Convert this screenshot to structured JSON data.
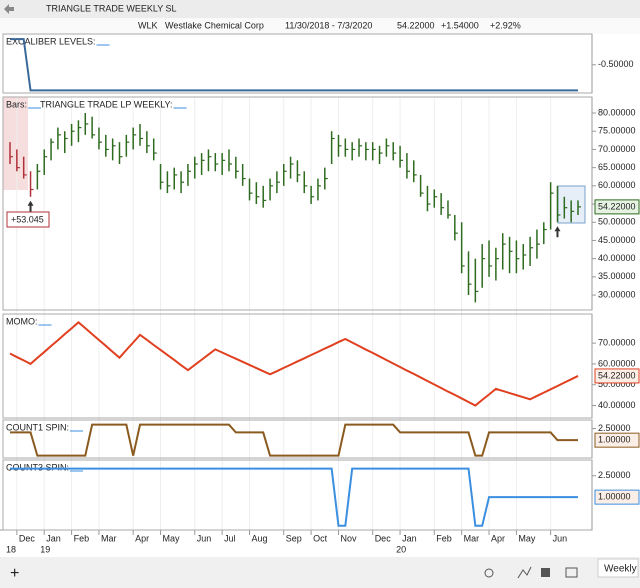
{
  "window": {
    "title": "TRIANGLE TRADE WEEKLY SL"
  },
  "header": {
    "symbol": "WLK",
    "name": "Westlake Chemical Corp",
    "range": "11/30/2018 - 7/3/2020",
    "last": "54.22000",
    "change": "+1.54000",
    "change_pct": "+2.92%"
  },
  "x_axis": {
    "categories": [
      null,
      "Dec",
      null,
      null,
      null,
      "Jan",
      null,
      null,
      null,
      "Feb",
      null,
      null,
      null,
      "Mar",
      null,
      null,
      null,
      null,
      "Apr",
      null,
      null,
      null,
      "May",
      null,
      null,
      null,
      null,
      "Jun",
      null,
      null,
      null,
      "Jul",
      null,
      null,
      null,
      "Aug",
      null,
      null,
      null,
      null,
      "Sep",
      null,
      null,
      null,
      "Oct",
      null,
      null,
      null,
      "Nov",
      null,
      null,
      null,
      null,
      "Dec",
      null,
      null,
      null,
      "Jan",
      null,
      null,
      null,
      null,
      "Feb",
      null,
      null,
      null,
      "Mar",
      null,
      null,
      null,
      "Apr",
      null,
      null,
      null,
      "May",
      null,
      null,
      null,
      null,
      "Jun",
      null,
      null,
      null,
      null
    ],
    "years": [
      "18",
      null,
      null,
      null,
      null,
      "19",
      null,
      null,
      null,
      null,
      null,
      null,
      null,
      null,
      null,
      null,
      null,
      null,
      null,
      null,
      null,
      null,
      null,
      null,
      null,
      null,
      null,
      null,
      null,
      null,
      null,
      null,
      null,
      null,
      null,
      null,
      null,
      null,
      null,
      null,
      null,
      null,
      null,
      null,
      null,
      null,
      null,
      null,
      null,
      null,
      null,
      null,
      null,
      null,
      null,
      null,
      null,
      "20",
      null,
      null,
      null,
      null,
      null,
      null,
      null,
      null,
      null,
      null,
      null,
      null,
      null,
      null,
      null,
      null,
      null,
      null,
      null,
      null,
      null,
      null,
      null,
      null,
      null,
      null
    ]
  },
  "chart_data": [
    {
      "type": "line",
      "label": "EXCALIBER LEVELS:",
      "color": "#3b6a9a",
      "values": [
        0,
        0,
        0,
        -1,
        -1,
        -1,
        -1,
        -1,
        -1,
        -1,
        -1,
        -1,
        -1,
        -1,
        -1,
        -1,
        -1,
        -1,
        -1,
        -1,
        -1,
        -1,
        -1,
        -1,
        -1,
        -1,
        -1,
        -1,
        -1,
        -1,
        -1,
        -1,
        -1,
        -1,
        -1,
        -1,
        -1,
        -1,
        -1,
        -1,
        -1,
        -1,
        -1,
        -1,
        -1,
        -1,
        -1,
        -1,
        -1,
        -1,
        -1,
        -1,
        -1,
        -1,
        -1,
        -1,
        -1,
        -1,
        -1,
        -1,
        -1,
        -1,
        -1,
        -1,
        -1,
        -1,
        -1,
        -1,
        -1,
        -1,
        -1,
        -1,
        -1,
        -1,
        -1,
        -1,
        -1,
        -1,
        -1,
        -1,
        -1,
        -1,
        -1,
        -1
      ],
      "ylim": [
        -1.05,
        0.1
      ],
      "yticks": [
        {
          "value": -0.5,
          "label": "-0.50000"
        }
      ]
    },
    {
      "type": "ohlc",
      "label": "Bars:",
      "sublabel": "TRIANGLE TRADE LP WEEKLY:",
      "high": [
        72,
        70,
        68,
        64,
        66,
        70,
        73,
        76,
        75,
        77,
        78,
        80,
        79,
        76,
        74,
        73,
        72,
        74,
        76,
        77,
        75,
        73,
        66,
        64,
        65,
        64,
        66,
        68,
        69,
        70,
        69,
        69,
        70,
        68,
        66,
        62,
        61,
        60,
        62,
        64,
        66,
        68,
        67,
        64,
        60,
        62,
        65,
        75,
        74,
        73,
        72,
        73,
        72,
        72,
        71,
        73,
        72,
        71,
        69,
        67,
        63,
        60,
        59,
        58,
        56,
        52,
        50,
        42,
        40,
        44,
        45,
        43,
        47,
        46,
        45,
        44,
        46,
        48,
        50,
        61,
        60,
        57,
        56,
        56
      ],
      "low": [
        66,
        64,
        62,
        57,
        59,
        63,
        67,
        70,
        69,
        71,
        72,
        74,
        73,
        70,
        68,
        67,
        66,
        68,
        70,
        71,
        69,
        67,
        59,
        58,
        59,
        58,
        60,
        62,
        63,
        64,
        64,
        63,
        64,
        62,
        60,
        56,
        55,
        54,
        56,
        58,
        60,
        62,
        61,
        58,
        55,
        56,
        59,
        66,
        68,
        68,
        67,
        68,
        67,
        67,
        66,
        68,
        67,
        65,
        62,
        61,
        57,
        53,
        54,
        52,
        51,
        45,
        36,
        30,
        28,
        32,
        35,
        34,
        37,
        36,
        36,
        37,
        38,
        40,
        44,
        48,
        50,
        51,
        50,
        52
      ],
      "close": [
        68,
        65,
        63,
        59,
        64,
        68,
        72,
        74,
        73,
        75,
        76,
        77,
        74,
        72,
        70,
        71,
        68,
        72,
        74,
        73,
        71,
        69,
        61,
        60,
        63,
        61,
        64,
        66,
        67,
        68,
        66,
        67,
        66,
        64,
        62,
        58,
        57,
        56,
        60,
        61,
        64,
        66,
        63,
        60,
        57,
        60,
        62,
        73,
        71,
        70,
        70,
        71,
        70,
        70,
        69,
        71,
        69,
        67,
        64,
        63,
        58,
        55,
        57,
        54,
        52,
        47,
        38,
        33,
        31,
        40,
        38,
        40,
        44,
        42,
        40,
        41,
        43,
        44,
        48,
        58,
        52,
        54,
        53,
        54.22
      ],
      "colors": [
        "#b0303a",
        "#b0303a",
        "#b0303a",
        "#b0303a",
        "#2e6b1f",
        "#2e6b1f",
        "#2e6b1f",
        "#2e6b1f",
        "#2e6b1f",
        "#2e6b1f",
        "#2e6b1f",
        "#2e6b1f",
        "#2e6b1f",
        "#2e6b1f",
        "#2e6b1f",
        "#2e6b1f",
        "#2e6b1f",
        "#2e6b1f",
        "#2e6b1f",
        "#2e6b1f",
        "#2e6b1f",
        "#2e6b1f",
        "#2e6b1f",
        "#2e6b1f",
        "#2e6b1f",
        "#2e6b1f",
        "#2e6b1f",
        "#2e6b1f",
        "#2e6b1f",
        "#2e6b1f",
        "#2e6b1f",
        "#2e6b1f",
        "#2e6b1f",
        "#2e6b1f",
        "#2e6b1f",
        "#2e6b1f",
        "#2e6b1f",
        "#2e6b1f",
        "#2e6b1f",
        "#2e6b1f",
        "#2e6b1f",
        "#2e6b1f",
        "#2e6b1f",
        "#2e6b1f",
        "#2e6b1f",
        "#2e6b1f",
        "#2e6b1f",
        "#2e6b1f",
        "#2e6b1f",
        "#2e6b1f",
        "#2e6b1f",
        "#2e6b1f",
        "#2e6b1f",
        "#2e6b1f",
        "#2e6b1f",
        "#2e6b1f",
        "#2e6b1f",
        "#2e6b1f",
        "#2e6b1f",
        "#2e6b1f",
        "#2e6b1f",
        "#2e6b1f",
        "#2e6b1f",
        "#2e6b1f",
        "#2e6b1f",
        "#2e6b1f",
        "#2e6b1f",
        "#2e6b1f",
        "#2e6b1f",
        "#2e6b1f",
        "#2e6b1f",
        "#2e6b1f",
        "#2e6b1f",
        "#2e6b1f",
        "#2e6b1f",
        "#2e6b1f",
        "#2e6b1f",
        "#2e6b1f",
        "#2e6b1f",
        "#2e6b1f",
        "#2e6b1f",
        "#2e6b1f",
        "#2e6b1f",
        "#2e6b1f"
      ],
      "signals": [
        3,
        80
      ],
      "annotation": "+53.045",
      "last_label": "54.22000",
      "ylim": [
        25.9,
        84.4
      ],
      "yticks": [
        {
          "value": 30,
          "label": "30.00000"
        },
        {
          "value": 35,
          "label": "35.00000"
        },
        {
          "value": 40,
          "label": "40.00000"
        },
        {
          "value": 45,
          "label": "45.00000"
        },
        {
          "value": 50,
          "label": "50.00000"
        },
        {
          "value": 55,
          "label": "55.00000"
        },
        {
          "value": 60,
          "label": "60.00000"
        },
        {
          "value": 65,
          "label": "65.00000"
        },
        {
          "value": 70,
          "label": "70.00000"
        },
        {
          "value": 75,
          "label": "75.00000"
        },
        {
          "value": 80,
          "label": "80.00000"
        }
      ]
    },
    {
      "type": "line",
      "label": "MOMO:",
      "color": "#e04020",
      "values": [
        65,
        63.3,
        61.7,
        60,
        62.9,
        65.7,
        68.6,
        71.4,
        74.3,
        77.1,
        80,
        77.2,
        74.3,
        71.5,
        68.7,
        65.8,
        63,
        66.7,
        70.3,
        74,
        71.6,
        69.1,
        66.7,
        64.3,
        61.9,
        59.4,
        57,
        59.5,
        62,
        64.5,
        67,
        65.5,
        64,
        62.5,
        61,
        59.5,
        58,
        56.5,
        55,
        56.5,
        58.1,
        59.6,
        61.2,
        62.7,
        64.3,
        65.8,
        67.4,
        68.9,
        70.5,
        72,
        70.3,
        68.6,
        66.9,
        65.3,
        63.6,
        61.9,
        60.2,
        58.5,
        56.8,
        55.2,
        53.5,
        51.8,
        50.1,
        48.4,
        46.7,
        45.1,
        43.4,
        41.7,
        40,
        42.7,
        45.3,
        48,
        47,
        46,
        45,
        44,
        43,
        44.6,
        46.2,
        47.8,
        49.4,
        51,
        52.6,
        54.22
      ],
      "last_label": "54.22000",
      "ylim": [
        34,
        84
      ],
      "yticks": [
        {
          "value": 40,
          "label": "40.00000"
        },
        {
          "value": 50,
          "label": "50.00000"
        },
        {
          "value": 60,
          "label": "60.00000"
        },
        {
          "value": 70,
          "label": "70.00000"
        }
      ]
    },
    {
      "type": "line",
      "label": "COUNT1 SPIN:",
      "color": "#8b5a1e",
      "values": [
        2,
        2,
        2,
        2,
        -1,
        -1,
        -1,
        -1,
        -1,
        -1,
        -1,
        -1,
        3,
        3,
        3,
        3,
        3,
        3,
        -1,
        3,
        3,
        3,
        3,
        3,
        3,
        3,
        3,
        3,
        3,
        3,
        3,
        3,
        3,
        2,
        2,
        2,
        2,
        2,
        -1,
        -1,
        -1,
        -1,
        -1,
        -1,
        -1,
        -1,
        -1,
        -1,
        -1,
        3,
        3,
        3,
        3,
        3,
        3,
        3,
        3,
        2,
        2,
        2,
        2,
        2,
        2,
        2,
        2,
        2,
        2,
        2,
        -1,
        -1,
        2,
        2,
        2,
        2,
        2,
        2,
        2,
        2,
        2,
        2,
        1,
        1,
        1,
        1
      ],
      "last_label": "1.00000",
      "ylim": [
        -1.3,
        3.6
      ],
      "yticks": [
        {
          "value": 2.5,
          "label": "2.50000"
        }
      ]
    },
    {
      "type": "line",
      "label": "COUNT3 SPIN:",
      "color": "#3b8fe0",
      "values": [
        3,
        3,
        3,
        3,
        3,
        3,
        3,
        3,
        3,
        3,
        3,
        3,
        3,
        3,
        3,
        3,
        3,
        3,
        3,
        3,
        3,
        3,
        3,
        3,
        3,
        3,
        3,
        3,
        3,
        3,
        3,
        3,
        3,
        3,
        3,
        3,
        3,
        3,
        3,
        3,
        3,
        3,
        3,
        3,
        3,
        3,
        3,
        3,
        -1,
        -1,
        3,
        3,
        3,
        3,
        3,
        3,
        3,
        3,
        3,
        3,
        3,
        3,
        3,
        3,
        3,
        3,
        3,
        3,
        -1,
        -1,
        1,
        1,
        1,
        1,
        1,
        1,
        1,
        1,
        1,
        1,
        1,
        1,
        1,
        1
      ],
      "last_label": "1.00000",
      "ylim": [
        -1.3,
        3.6
      ],
      "yticks": [
        {
          "value": 2.5,
          "label": "2.50000"
        }
      ]
    }
  ],
  "footer": {
    "period": "Weekly"
  }
}
